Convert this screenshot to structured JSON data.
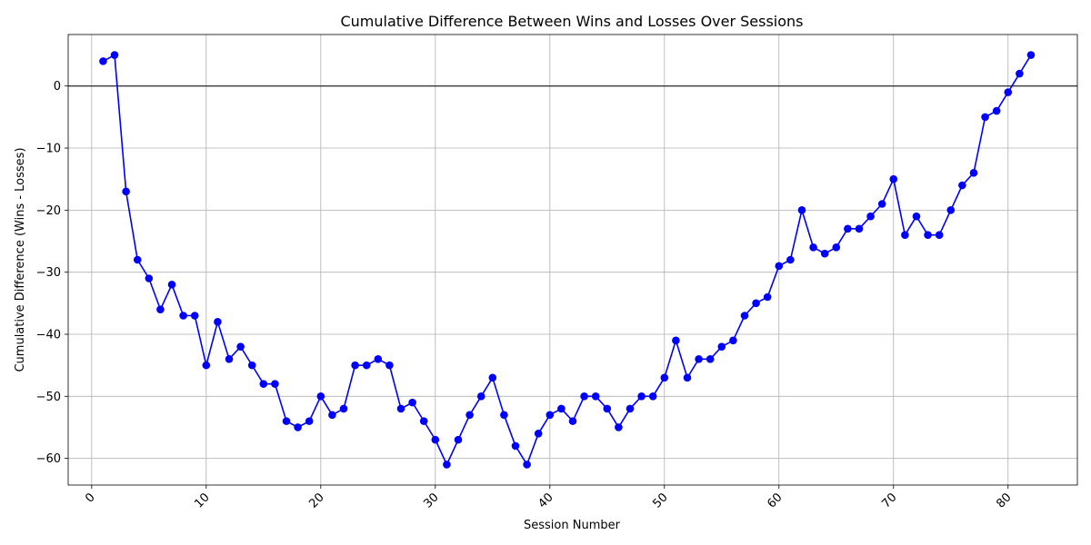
{
  "chart_data": {
    "type": "line",
    "title": "Cumulative Difference Between Wins and Losses Over Sessions",
    "xlabel": "Session Number",
    "ylabel": "Cumulative Difference (Wins - Losses)",
    "xlim": [
      -2.05,
      86.05
    ],
    "ylim": [
      -64.3,
      8.3
    ],
    "xticks": [
      0,
      10,
      20,
      30,
      40,
      50,
      60,
      70,
      80
    ],
    "yticks": [
      -60,
      -50,
      -40,
      -30,
      -20,
      -10,
      0
    ],
    "grid": true,
    "reference_line_y": 0,
    "line_color": "#0000ff",
    "marker_color": "#0000ff",
    "reference_line_color": "#000000",
    "x": [
      1,
      2,
      3,
      4,
      5,
      6,
      7,
      8,
      9,
      10,
      11,
      12,
      13,
      14,
      15,
      16,
      17,
      18,
      19,
      20,
      21,
      22,
      23,
      24,
      25,
      26,
      27,
      28,
      29,
      30,
      31,
      32,
      33,
      34,
      35,
      36,
      37,
      38,
      39,
      40,
      41,
      42,
      43,
      44,
      45,
      46,
      47,
      48,
      49,
      50,
      51,
      52,
      53,
      54,
      55,
      56,
      57,
      58,
      59,
      60,
      61,
      62,
      63,
      64,
      65,
      66,
      67,
      68,
      69,
      70,
      71,
      72,
      73,
      74,
      75,
      76,
      77,
      78,
      79,
      80,
      81,
      82
    ],
    "y": [
      4,
      5,
      -17,
      -28,
      -31,
      -36,
      -32,
      -37,
      -37,
      -45,
      -38,
      -44,
      -42,
      -45,
      -48,
      -48,
      -54,
      -55,
      -54,
      -50,
      -53,
      -52,
      -45,
      -45,
      -44,
      -45,
      -52,
      -51,
      -54,
      -57,
      -61,
      -57,
      -53,
      -50,
      -47,
      -53,
      -58,
      -61,
      -56,
      -53,
      -52,
      -54,
      -50,
      -50,
      -52,
      -55,
      -52,
      -50,
      -50,
      -47,
      -41,
      -47,
      -44,
      -44,
      -42,
      -41,
      -37,
      -35,
      -34,
      -29,
      -28,
      -20,
      -26,
      -27,
      -26,
      -23,
      -23,
      -21,
      -19,
      -15,
      -24,
      -21,
      -24,
      -24,
      -20,
      -16,
      -14,
      -5,
      -4,
      -1,
      2,
      5
    ]
  }
}
